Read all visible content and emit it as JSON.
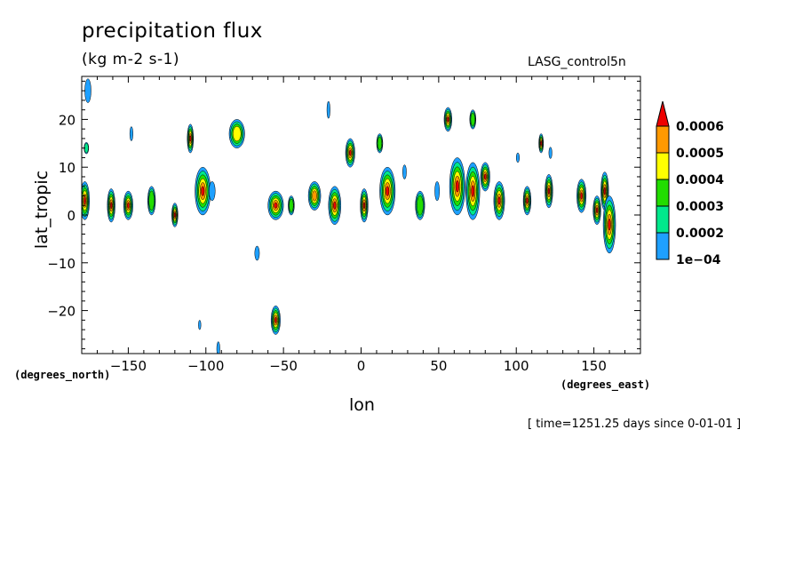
{
  "chart_data": {
    "type": "heatmap",
    "title": "precipitation flux",
    "units": "(kg m-2 s-1)",
    "experiment": "LASG_control5n",
    "xlabel": "lon",
    "ylabel": "lat_tropic",
    "x_unit_note": "(degrees_east)",
    "y_unit_note": "(degrees_north)",
    "timestamp": "[ time=1251.25 days since 0-01-01 ]",
    "xlim": [
      -180,
      180
    ],
    "ylim": [
      -29,
      29
    ],
    "x_ticks": [
      -150,
      -100,
      -50,
      0,
      50,
      100,
      150
    ],
    "y_ticks": [
      -20,
      -10,
      0,
      10,
      20
    ],
    "colorbar": {
      "levels": [
        "0.0006",
        "0.0005",
        "0.0004",
        "0.0003",
        "0.0002",
        "1e-04"
      ],
      "level_values": [
        0.0001,
        0.0002,
        0.0003,
        0.0004,
        0.0005,
        0.0006
      ],
      "colors": [
        "#1ea0ff",
        "#00e88c",
        "#22dd00",
        "#ffff00",
        "#ff9900",
        "#ee0000"
      ]
    },
    "cells": [
      {
        "lon": -178,
        "lat": 3,
        "rx": 3,
        "ry": 4,
        "level": 6
      },
      {
        "lon": -161,
        "lat": 2,
        "rx": 2.5,
        "ry": 3.5,
        "level": 6
      },
      {
        "lon": -150,
        "lat": 2,
        "rx": 3,
        "ry": 3,
        "level": 6
      },
      {
        "lon": -135,
        "lat": 3,
        "rx": 2.5,
        "ry": 3,
        "level": 3
      },
      {
        "lon": -120,
        "lat": 0,
        "rx": 2,
        "ry": 2.5,
        "level": 6
      },
      {
        "lon": -110,
        "lat": 16,
        "rx": 2,
        "ry": 3,
        "level": 6
      },
      {
        "lon": -102,
        "lat": 5,
        "rx": 5,
        "ry": 5,
        "level": 6
      },
      {
        "lon": -80,
        "lat": 17,
        "rx": 5,
        "ry": 3,
        "level": 4
      },
      {
        "lon": -55,
        "lat": 2,
        "rx": 5,
        "ry": 3,
        "level": 6
      },
      {
        "lon": -67,
        "lat": -8,
        "rx": 1.5,
        "ry": 1.5,
        "level": 1
      },
      {
        "lon": -55,
        "lat": -22,
        "rx": 3,
        "ry": 3,
        "level": 6
      },
      {
        "lon": -30,
        "lat": 4,
        "rx": 4,
        "ry": 3,
        "level": 5
      },
      {
        "lon": -17,
        "lat": 2,
        "rx": 4,
        "ry": 4,
        "level": 6
      },
      {
        "lon": -7,
        "lat": 13,
        "rx": 3,
        "ry": 3,
        "level": 6
      },
      {
        "lon": 2,
        "lat": 2,
        "rx": 2.5,
        "ry": 3.5,
        "level": 6
      },
      {
        "lon": 12,
        "lat": 15,
        "rx": 2,
        "ry": 2,
        "level": 3
      },
      {
        "lon": 17,
        "lat": 5,
        "rx": 5,
        "ry": 5,
        "level": 6
      },
      {
        "lon": 38,
        "lat": 2,
        "rx": 3,
        "ry": 3,
        "level": 3
      },
      {
        "lon": 56,
        "lat": 20,
        "rx": 2.5,
        "ry": 2.5,
        "level": 6
      },
      {
        "lon": 62,
        "lat": 6,
        "rx": 5,
        "ry": 6,
        "level": 6
      },
      {
        "lon": 72,
        "lat": 5,
        "rx": 4.5,
        "ry": 6,
        "level": 6
      },
      {
        "lon": 72,
        "lat": 20,
        "rx": 2,
        "ry": 2,
        "level": 3
      },
      {
        "lon": 80,
        "lat": 8,
        "rx": 3,
        "ry": 3,
        "level": 6
      },
      {
        "lon": 89,
        "lat": 3,
        "rx": 3.5,
        "ry": 4,
        "level": 6
      },
      {
        "lon": 107,
        "lat": 3,
        "rx": 2.5,
        "ry": 3,
        "level": 6
      },
      {
        "lon": 116,
        "lat": 15,
        "rx": 1.5,
        "ry": 2,
        "level": 6
      },
      {
        "lon": 121,
        "lat": 5,
        "rx": 2.5,
        "ry": 3.5,
        "level": 6
      },
      {
        "lon": 142,
        "lat": 4,
        "rx": 3,
        "ry": 3.5,
        "level": 6
      },
      {
        "lon": 152,
        "lat": 1,
        "rx": 2.5,
        "ry": 3,
        "level": 6
      },
      {
        "lon": 157,
        "lat": 5,
        "rx": 2.5,
        "ry": 4,
        "level": 6
      },
      {
        "lon": 160,
        "lat": -2,
        "rx": 4,
        "ry": 6,
        "level": 6
      },
      {
        "lon": -96,
        "lat": 5,
        "rx": 2,
        "ry": 2,
        "level": 1
      },
      {
        "lon": -177,
        "lat": 14,
        "rx": 1.5,
        "ry": 1.2,
        "level": 2
      },
      {
        "lon": -148,
        "lat": 17,
        "rx": 1,
        "ry": 1.5,
        "level": 1
      },
      {
        "lon": 49,
        "lat": 5,
        "rx": 1.5,
        "ry": 2,
        "level": 1
      },
      {
        "lon": 28,
        "lat": 9,
        "rx": 1.2,
        "ry": 1.5,
        "level": 1
      },
      {
        "lon": -21,
        "lat": 22,
        "rx": 1,
        "ry": 1.8,
        "level": 1
      },
      {
        "lon": 101,
        "lat": 12,
        "rx": 1,
        "ry": 1,
        "level": 1
      },
      {
        "lon": 122,
        "lat": 13,
        "rx": 1,
        "ry": 1.2,
        "level": 1
      },
      {
        "lon": -45,
        "lat": 2,
        "rx": 2,
        "ry": 2,
        "level": 3
      },
      {
        "lon": -176,
        "lat": 26,
        "rx": 2,
        "ry": 2.5,
        "level": 1
      },
      {
        "lon": -92,
        "lat": -28,
        "rx": 1,
        "ry": 1.5,
        "level": 1
      },
      {
        "lon": -104,
        "lat": -23,
        "rx": 0.8,
        "ry": 1,
        "level": 1
      }
    ]
  }
}
